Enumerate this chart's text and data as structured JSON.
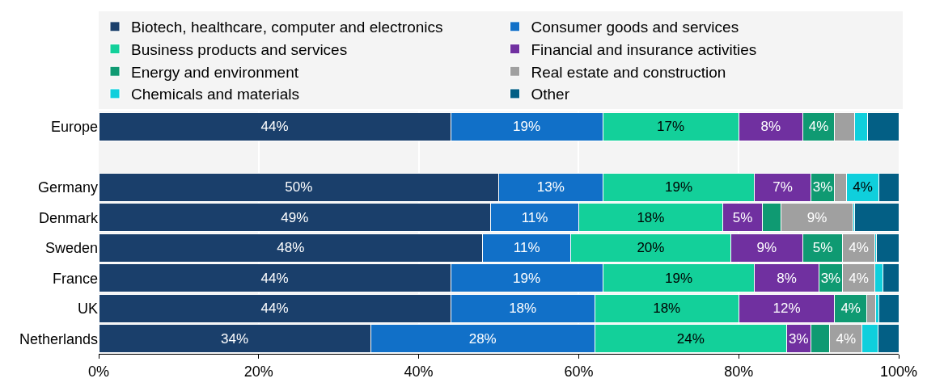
{
  "chart_data": {
    "type": "bar",
    "orientation": "horizontal",
    "stacked": true,
    "categories": [
      "Europe",
      null,
      "Germany",
      "Denmark",
      "Sweden",
      "France",
      "UK",
      "Netherlands"
    ],
    "series": [
      {
        "name": "Biotech, healthcare, computer and electronics",
        "color": "#1a3f6b",
        "values": [
          44,
          null,
          50,
          49,
          48,
          44,
          44,
          34
        ],
        "value_labels": [
          "44%",
          null,
          "50%",
          "49%",
          "48%",
          "44%",
          "44%",
          "34%"
        ]
      },
      {
        "name": "Consumer goods and services",
        "color": "#1170c8",
        "values": [
          19,
          null,
          13,
          11,
          11,
          19,
          18,
          28
        ],
        "value_labels": [
          "19%",
          null,
          "13%",
          "11%",
          "11%",
          "19%",
          "18%",
          "28%"
        ]
      },
      {
        "name": "Business products and services",
        "color": "#13d09a",
        "values": [
          17,
          null,
          19,
          18,
          20,
          19,
          18,
          24
        ],
        "value_labels": [
          "17%",
          null,
          "19%",
          "18%",
          "20%",
          "19%",
          "18%",
          "24%"
        ]
      },
      {
        "name": "Financial and insurance activities",
        "color": "#7030a0",
        "values": [
          8,
          null,
          7,
          5,
          9,
          8,
          12,
          3
        ],
        "value_labels": [
          "8%",
          null,
          "7%",
          "5%",
          "9%",
          "8%",
          "12%",
          "3%"
        ]
      },
      {
        "name": "Energy and environment",
        "color": "#0f9a72",
        "values": [
          4,
          null,
          3,
          2.3,
          5,
          3,
          4,
          2.4
        ],
        "value_labels": [
          "4%",
          null,
          "3%",
          null,
          "5%",
          "3%",
          "4%",
          null
        ]
      },
      {
        "name": "Real estate and construction",
        "color": "#a0a0a0",
        "values": [
          2.5,
          null,
          1.5,
          9,
          4,
          4,
          1.1,
          4
        ],
        "value_labels": [
          null,
          null,
          null,
          "9%",
          "4%",
          "4%",
          null,
          "4%"
        ]
      },
      {
        "name": "Chemicals and materials",
        "color": "#0fcfdc",
        "values": [
          1.6,
          null,
          4,
          0.2,
          0.2,
          1,
          0.4,
          2
        ],
        "value_labels": [
          null,
          null,
          "4%",
          null,
          null,
          null,
          null,
          null
        ]
      },
      {
        "name": "Other",
        "color": "#035f85",
        "values": [
          3.9,
          null,
          2.5,
          5.5,
          2.8,
          2,
          2.5,
          2.6
        ],
        "value_labels": [
          null,
          null,
          null,
          null,
          null,
          null,
          null,
          null
        ]
      }
    ],
    "xlim": [
      0,
      100
    ],
    "xticks": [
      {
        "value": 0,
        "label": "0%"
      },
      {
        "value": 20,
        "label": "20%"
      },
      {
        "value": 40,
        "label": "40%"
      },
      {
        "value": 60,
        "label": "60%"
      },
      {
        "value": 80,
        "label": "80%"
      },
      {
        "value": 100,
        "label": "100%"
      }
    ],
    "grid": "x",
    "legend": "top"
  }
}
